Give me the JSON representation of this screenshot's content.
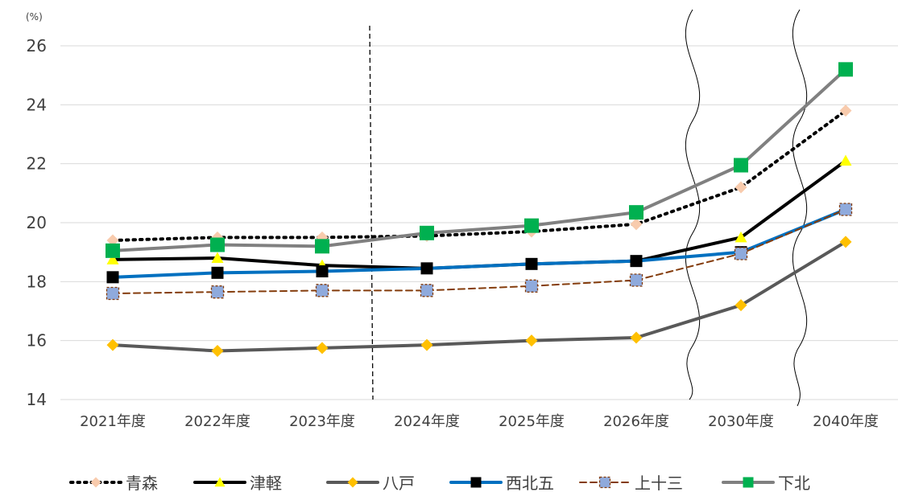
{
  "chart_data": {
    "type": "line",
    "unit_label": "(%)",
    "categories": [
      "2021年度",
      "2022年度",
      "2023年度",
      "2024年度",
      "2025年度",
      "2026年度",
      "2030年度",
      "2040年度"
    ],
    "ylim": [
      14,
      26
    ],
    "yticks": [
      14,
      16,
      18,
      20,
      22,
      24,
      26
    ],
    "grid": true,
    "legend_position": "bottom",
    "series": [
      {
        "name": "青森",
        "values": [
          19.4,
          19.5,
          19.5,
          19.55,
          19.7,
          19.95,
          21.2,
          23.8
        ],
        "color": "#000000",
        "line": "dotted",
        "marker": "diamond",
        "marker_color": "#F8CBAD"
      },
      {
        "name": "津軽",
        "values": [
          18.75,
          18.8,
          18.55,
          18.45,
          18.6,
          18.7,
          19.5,
          22.1
        ],
        "color": "#000000",
        "line": "solid",
        "marker": "triangle",
        "marker_color": "#FFFF00"
      },
      {
        "name": "八戸",
        "values": [
          15.85,
          15.65,
          15.75,
          15.85,
          16.0,
          16.1,
          17.2,
          19.35
        ],
        "color": "#595959",
        "line": "solid",
        "marker": "diamond",
        "marker_color": "#FFC000"
      },
      {
        "name": "西北五",
        "values": [
          18.15,
          18.3,
          18.35,
          18.45,
          18.6,
          18.7,
          19.0,
          20.45
        ],
        "color": "#0070C0",
        "line": "solid",
        "marker": "square",
        "marker_color": "#000000"
      },
      {
        "name": "上十三",
        "values": [
          17.6,
          17.65,
          17.7,
          17.7,
          17.85,
          18.05,
          18.95,
          20.45
        ],
        "color": "#843C0C",
        "line": "dashed",
        "marker": "square",
        "marker_color": "#8FAADC"
      },
      {
        "name": "下北",
        "values": [
          19.05,
          19.25,
          19.2,
          19.65,
          19.9,
          20.35,
          21.95,
          25.2
        ],
        "color": "#808080",
        "line": "solid",
        "marker": "square",
        "marker_color": "#00B050"
      }
    ]
  }
}
